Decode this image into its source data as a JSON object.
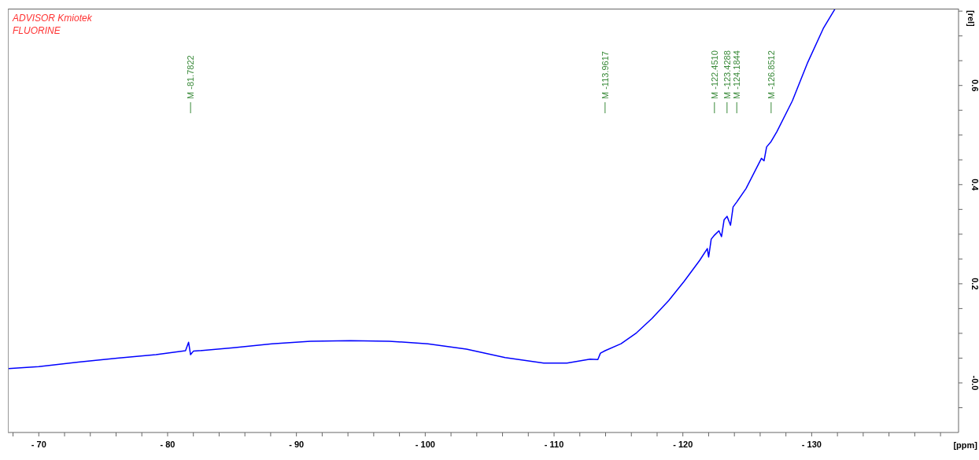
{
  "chart_data": {
    "type": "line",
    "title": "ADVISOR Kmiotek",
    "subtitle": "FLUORINE",
    "xlabel": "[ppm]",
    "ylabel": "[rel]",
    "x": [
      -67.65,
      -70,
      -73.07,
      -76.08,
      -79.1,
      -81.39,
      -81.63,
      -81.7822,
      -82.0,
      -85.1,
      -88.1,
      -91.1,
      -94.2,
      -97.2,
      -100.2,
      -103.2,
      -106.2,
      -109.2,
      -111.0,
      -112.8,
      -113.4,
      -113.6,
      -113.9617,
      -115.2,
      -116.4,
      -117.6,
      -118.9,
      -120.1,
      -121.3,
      -121.9,
      -122.0,
      -122.2,
      -122.451,
      -122.8,
      -123.0,
      -123.2,
      -123.4288,
      -123.7,
      -123.9,
      -124.1844,
      -124.9,
      -126.1,
      -126.3,
      -126.5,
      -126.8512,
      -127.3,
      -128.5,
      -129.7,
      -130.9,
      -131.8
    ],
    "series": [
      {
        "color": "#0000ff",
        "values": [
          0.029,
          0.033,
          0.042,
          0.05,
          0.057,
          0.065,
          0.082,
          0.057,
          0.064,
          0.071,
          0.079,
          0.084,
          0.085,
          0.084,
          0.079,
          0.068,
          0.051,
          0.04,
          0.04,
          0.048,
          0.047,
          0.06,
          0.065,
          0.079,
          0.101,
          0.13,
          0.166,
          0.205,
          0.247,
          0.271,
          0.254,
          0.29,
          0.298,
          0.307,
          0.295,
          0.329,
          0.336,
          0.318,
          0.355,
          0.365,
          0.392,
          0.453,
          0.448,
          0.476,
          0.487,
          0.507,
          0.569,
          0.647,
          0.715,
          0.754
        ]
      }
    ],
    "xlim": [
      -67.6,
      -141.4
    ],
    "xticks": [
      {
        "value": -68,
        "label": null
      },
      {
        "value": -70,
        "label": "- 70"
      },
      {
        "value": -72,
        "label": null
      },
      {
        "value": -74,
        "label": null
      },
      {
        "value": -76,
        "label": null
      },
      {
        "value": -78,
        "label": null
      },
      {
        "value": -80,
        "label": "- 80"
      },
      {
        "value": -82,
        "label": null
      },
      {
        "value": -84,
        "label": null
      },
      {
        "value": -86,
        "label": null
      },
      {
        "value": -88,
        "label": null
      },
      {
        "value": -90,
        "label": "- 90"
      },
      {
        "value": -92,
        "label": null
      },
      {
        "value": -94,
        "label": null
      },
      {
        "value": -96,
        "label": null
      },
      {
        "value": -98,
        "label": null
      },
      {
        "value": -100,
        "label": "- 100"
      },
      {
        "value": -102,
        "label": null
      },
      {
        "value": -104,
        "label": null
      },
      {
        "value": -106,
        "label": null
      },
      {
        "value": -108,
        "label": null
      },
      {
        "value": -110,
        "label": "- 110"
      },
      {
        "value": -112,
        "label": null
      },
      {
        "value": -114,
        "label": null
      },
      {
        "value": -116,
        "label": null
      },
      {
        "value": -118,
        "label": null
      },
      {
        "value": -120,
        "label": "- 120"
      },
      {
        "value": -122,
        "label": null
      },
      {
        "value": -124,
        "label": null
      },
      {
        "value": -126,
        "label": null
      },
      {
        "value": -128,
        "label": null
      },
      {
        "value": -130,
        "label": "- 130"
      },
      {
        "value": -132,
        "label": null
      },
      {
        "value": -134,
        "label": null
      },
      {
        "value": -136,
        "label": null
      },
      {
        "value": -138,
        "label": null
      },
      {
        "value": -140,
        "label": null
      }
    ],
    "ylim": [
      -0.1,
      0.755
    ],
    "yticks": [
      {
        "value": -0.05,
        "label": null
      },
      {
        "value": 0,
        "label": "-0.0"
      },
      {
        "value": 0.05,
        "label": null
      },
      {
        "value": 0.1,
        "label": null
      },
      {
        "value": 0.15,
        "label": null
      },
      {
        "value": 0.2,
        "label": "0.2"
      },
      {
        "value": 0.25,
        "label": null
      },
      {
        "value": 0.3,
        "label": null
      },
      {
        "value": 0.35,
        "label": null
      },
      {
        "value": 0.4,
        "label": "0.4"
      },
      {
        "value": 0.45,
        "label": null
      },
      {
        "value": 0.5,
        "label": null
      },
      {
        "value": 0.55,
        "label": null
      },
      {
        "value": 0.6,
        "label": "0.6"
      },
      {
        "value": 0.65,
        "label": null
      },
      {
        "value": 0.7,
        "label": null
      },
      {
        "value": 0.75,
        "label": null
      }
    ],
    "annotations": [
      {
        "text": "M -81.7822",
        "x": -81.7822
      },
      {
        "text": "M -113.9617",
        "x": -113.9617
      },
      {
        "text": "M -122.4510",
        "x": -122.451
      },
      {
        "text": "M -123.4288",
        "x": -123.4288
      },
      {
        "text": "M -124.1844",
        "x": -124.1844
      },
      {
        "text": "M -126.8512",
        "x": -126.8512
      }
    ]
  }
}
